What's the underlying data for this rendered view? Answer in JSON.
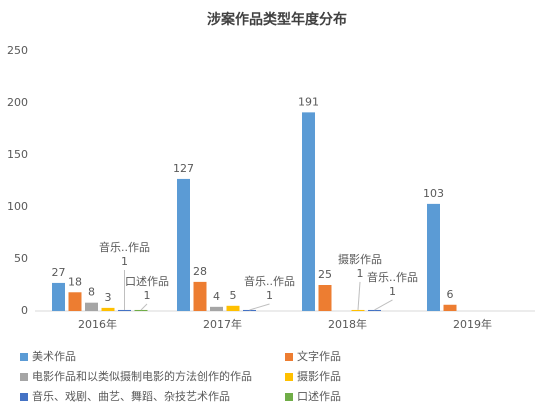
{
  "chart_data": {
    "type": "bar",
    "title": "涉案作品类型年度分布",
    "categories": [
      "2016年",
      "2017年",
      "2018年",
      "2019年"
    ],
    "series": [
      {
        "name": "美术作品",
        "color": "#5b9bd5",
        "values": [
          27,
          127,
          191,
          103
        ]
      },
      {
        "name": "文字作品",
        "color": "#ed7d31",
        "values": [
          18,
          28,
          25,
          6
        ]
      },
      {
        "name": "电影作品和以类似摄制电影的方法创作的作品",
        "color": "#a5a5a5",
        "values": [
          8,
          4,
          null,
          null
        ]
      },
      {
        "name": "摄影作品",
        "color": "#ffc000",
        "values": [
          3,
          5,
          1,
          null
        ]
      },
      {
        "name": "音乐、戏剧、曲艺、舞蹈、杂技艺术作品",
        "short_name": "音乐..作品",
        "color": "#4472c4",
        "values": [
          1,
          1,
          1,
          null
        ]
      },
      {
        "name": "口述作品",
        "color": "#70ad47",
        "values": [
          1,
          null,
          null,
          null
        ]
      }
    ],
    "ylim": [
      0,
      250
    ],
    "yticks": [
      0,
      50,
      100,
      150,
      200,
      250
    ],
    "grid": false,
    "legend": "bottom"
  }
}
